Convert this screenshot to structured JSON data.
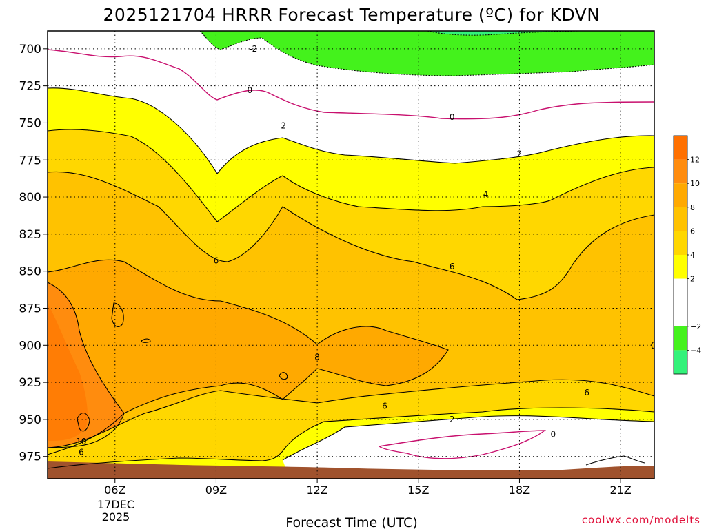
{
  "chart_data": {
    "type": "heatmap",
    "title": "2025121704 HRRR Forecast Temperature (ºC) for KDVN",
    "xlabel": "Forecast Time (UTC)",
    "ylabel": "",
    "credit": "coolwx.com/modelts",
    "x_ticks": [
      "06Z",
      "09Z",
      "12Z",
      "15Z",
      "18Z",
      "21Z"
    ],
    "x_date_lines": [
      "17DEC",
      "2025"
    ],
    "x_range_hours_utc": [
      4,
      22
    ],
    "y_ticks": [
      700,
      725,
      750,
      775,
      800,
      825,
      850,
      875,
      900,
      925,
      950,
      975
    ],
    "y_range_hpa": [
      688,
      990
    ],
    "colorbar_ticks": [
      12,
      10,
      8,
      6,
      4,
      2,
      -2,
      -4
    ],
    "color_levels": [
      {
        "min": -6,
        "max": -4,
        "color": "#33f27a"
      },
      {
        "min": -4,
        "max": -2,
        "color": "#44f21c"
      },
      {
        "min": -2,
        "max": 2,
        "color": "#ffffff"
      },
      {
        "min": 2,
        "max": 4,
        "color": "#ffff00"
      },
      {
        "min": 4,
        "max": 6,
        "color": "#ffd700"
      },
      {
        "min": 6,
        "max": 8,
        "color": "#ffc200"
      },
      {
        "min": 8,
        "max": 10,
        "color": "#ffa900"
      },
      {
        "min": 10,
        "max": 12,
        "color": "#ff8c0e"
      },
      {
        "min": 12,
        "max": 14,
        "color": "#ff7000"
      }
    ],
    "ground_color": "#a0522d",
    "isotherm_labels": [
      {
        "text": "-2",
        "hour": 10.1,
        "p": 700
      },
      {
        "text": "0",
        "hour": 10.0,
        "p": 728
      },
      {
        "text": "2",
        "hour": 11.0,
        "p": 752
      },
      {
        "text": "0",
        "hour": 16.0,
        "p": 746
      },
      {
        "text": "2",
        "hour": 18.0,
        "p": 771
      },
      {
        "text": "4",
        "hour": 17.0,
        "p": 798
      },
      {
        "text": "6",
        "hour": 9.0,
        "p": 843
      },
      {
        "text": "6",
        "hour": 16.0,
        "p": 847
      },
      {
        "text": "8",
        "hour": 12.0,
        "p": 908
      },
      {
        "text": "6",
        "hour": 14.0,
        "p": 941
      },
      {
        "text": "6",
        "hour": 20.0,
        "p": 932
      },
      {
        "text": "2",
        "hour": 16.0,
        "p": 950
      },
      {
        "text": "0",
        "hour": 19.0,
        "p": 960
      },
      {
        "text": "10",
        "hour": 5.0,
        "p": 965
      },
      {
        "text": "6",
        "hour": 5.0,
        "p": 972
      }
    ]
  }
}
